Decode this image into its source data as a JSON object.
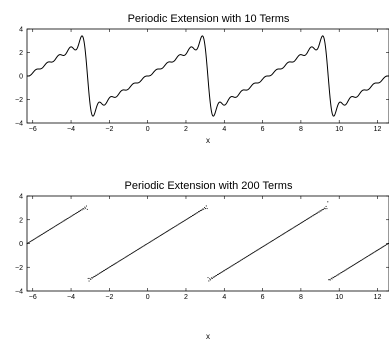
{
  "chart_data": [
    {
      "type": "line",
      "title": "Periodic Extension with 10 Terms",
      "xlabel": "x",
      "ylabel": "",
      "xlim": [
        -6.3,
        12.6
      ],
      "ylim": [
        -4,
        4
      ],
      "xticks": [
        -6,
        -4,
        -2,
        0,
        2,
        4,
        6,
        8,
        10,
        12
      ],
      "yticks": [
        -4,
        -2,
        0,
        2,
        4
      ],
      "grid": false,
      "series": [
        {
          "terms": 10,
          "style": "solid",
          "color": "#000000",
          "function": "partial Fourier sum of f(x)=x on [-pi, pi], periodically extended"
        }
      ]
    },
    {
      "type": "scatter",
      "title": "Periodic Extension with 200 Terms",
      "xlabel": "x",
      "ylabel": "",
      "xlim": [
        -6.3,
        12.6
      ],
      "ylim": [
        -4,
        4
      ],
      "xticks": [
        -6,
        -4,
        -2,
        0,
        2,
        4,
        6,
        8,
        10,
        12
      ],
      "yticks": [
        -4,
        -2,
        0,
        2,
        4
      ],
      "grid": false,
      "series": [
        {
          "terms": 200,
          "style": "dotted",
          "color": "#000000",
          "function": "partial Fourier sum of f(x)=x on [-pi, pi], periodically extended"
        }
      ]
    }
  ]
}
